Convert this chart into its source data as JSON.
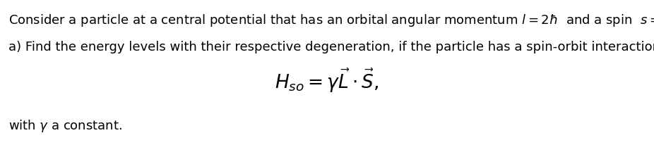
{
  "line1": "Consider a particle at a central potential that has an orbital angular momentum $l = 2\\hbar$  and a spin  $s = \\hbar.$",
  "line2": "a) Find the energy levels with their respective degeneration, if the particle has a spin-orbit interaction as follows",
  "line3": "$H_{so} = \\gamma\\vec{L}\\cdot\\vec{S},$",
  "line4": "with $\\gamma$ a constant.",
  "background_color": "#ffffff",
  "text_color": "#000000",
  "fontsize_main": 13.0,
  "fontsize_equation": 19,
  "fig_width": 9.26,
  "fig_height": 2.16,
  "dpi": 100
}
